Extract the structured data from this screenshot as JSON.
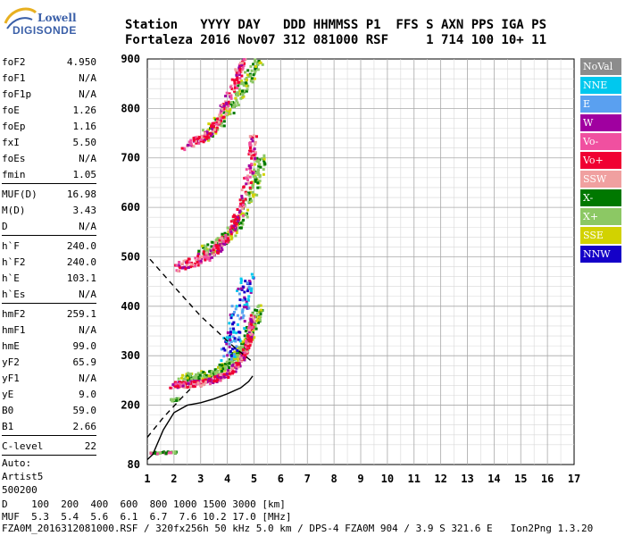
{
  "logo": {
    "line1": "Lowell",
    "line2": "DIGISONDE"
  },
  "header": {
    "line1": "Station   YYYY DAY   DDD HHMMSS P1  FFS S AXN PPS IGA PS",
    "line2": "Fortaleza 2016 Nov07 312 081000 RSF     1 714 100 10+ 11"
  },
  "params": {
    "group1": [
      {
        "name": "foF2",
        "value": "4.950"
      },
      {
        "name": "foF1",
        "value": "N/A"
      },
      {
        "name": "foF1p",
        "value": "N/A"
      },
      {
        "name": "foE",
        "value": "1.26"
      },
      {
        "name": "foEp",
        "value": "1.16"
      },
      {
        "name": "fxI",
        "value": "5.50"
      },
      {
        "name": "foEs",
        "value": "N/A"
      },
      {
        "name": "fmin",
        "value": "1.05"
      }
    ],
    "group2": [
      {
        "name": "MUF(D)",
        "value": "16.98"
      },
      {
        "name": "M(D)",
        "value": "3.43"
      },
      {
        "name": "D",
        "value": "N/A"
      }
    ],
    "group3": [
      {
        "name": "h`F",
        "value": "240.0"
      },
      {
        "name": "h`F2",
        "value": "240.0"
      },
      {
        "name": "h`E",
        "value": "103.1"
      },
      {
        "name": "h`Es",
        "value": "N/A"
      }
    ],
    "group4": [
      {
        "name": "hmF2",
        "value": "259.1"
      },
      {
        "name": "hmF1",
        "value": "N/A"
      },
      {
        "name": "hmE",
        "value": "99.0"
      },
      {
        "name": "yF2",
        "value": "65.9"
      },
      {
        "name": "yF1",
        "value": "N/A"
      },
      {
        "name": "yE",
        "value": "9.0"
      },
      {
        "name": "B0",
        "value": "59.0"
      },
      {
        "name": "B1",
        "value": "2.66"
      }
    ],
    "group5": [
      {
        "name": "C-level",
        "value": "22"
      }
    ],
    "auto": [
      "Auto:",
      "Artist5",
      "500200"
    ]
  },
  "legend": [
    {
      "label": "NoVal",
      "color": "#8c8c8c"
    },
    {
      "label": "NNE",
      "color": "#00c8ee"
    },
    {
      "label": "E",
      "color": "#5aa0f0"
    },
    {
      "label": "W",
      "color": "#a000a0"
    },
    {
      "label": "Vo-",
      "color": "#f050a0"
    },
    {
      "label": "Vo+",
      "color": "#f00032"
    },
    {
      "label": "SSW",
      "color": "#f0a0a0"
    },
    {
      "label": "X-",
      "color": "#007800"
    },
    {
      "label": "X+",
      "color": "#8cc864"
    },
    {
      "label": "SSE",
      "color": "#d2d200"
    },
    {
      "label": "NNW",
      "color": "#1400c8"
    }
  ],
  "bottom": {
    "d_line": "D    100  200  400  600  800 1000 1500 3000 [km]",
    "muf_line": "MUF  5.3  5.4  5.6  6.1  6.7  7.6 10.2 17.0 [MHz]"
  },
  "footer": "FZA0M_2016312081000.RSF / 320fx256h 50 kHz 5.0 km / DPS-4 FZA0M 904 / 3.9 S 321.6 E   Ion2Png 1.3.20",
  "chart_data": {
    "type": "scatter",
    "xlim": [
      1,
      17
    ],
    "ylim": [
      80,
      900
    ],
    "x_ticks": [
      1,
      2,
      3,
      4,
      5,
      6,
      7,
      8,
      9,
      10,
      11,
      12,
      13,
      14,
      15,
      16,
      17
    ],
    "y_ticks": [
      80,
      200,
      300,
      400,
      500,
      600,
      700,
      800,
      900
    ],
    "grid": true,
    "profile_solid": [
      [
        1.0,
        90
      ],
      [
        1.2,
        100
      ],
      [
        1.6,
        150
      ],
      [
        2.0,
        185
      ],
      [
        2.5,
        200
      ],
      [
        3.0,
        205
      ],
      [
        3.5,
        213
      ],
      [
        4.0,
        223
      ],
      [
        4.5,
        235
      ],
      [
        4.8,
        248
      ],
      [
        4.95,
        259
      ]
    ],
    "trace_o": [
      [
        1.9,
        240
      ],
      [
        2.5,
        242
      ],
      [
        3.0,
        244
      ],
      [
        3.5,
        250
      ],
      [
        4.0,
        262
      ],
      [
        4.4,
        282
      ],
      [
        4.7,
        310
      ],
      [
        4.85,
        340
      ],
      [
        4.95,
        380
      ]
    ],
    "trace_x": [
      [
        2.3,
        255
      ],
      [
        3.0,
        258
      ],
      [
        3.5,
        265
      ],
      [
        4.0,
        280
      ],
      [
        4.5,
        305
      ],
      [
        4.9,
        350
      ],
      [
        5.3,
        400
      ]
    ],
    "mirror_2": [
      [
        2.1,
        480
      ],
      [
        2.8,
        490
      ],
      [
        3.5,
        510
      ],
      [
        4.0,
        540
      ],
      [
        4.5,
        590
      ],
      [
        4.9,
        680
      ],
      [
        5.0,
        750
      ]
    ],
    "mirror_3": [
      [
        2.3,
        720
      ],
      [
        3.0,
        735
      ],
      [
        3.5,
        760
      ],
      [
        4.0,
        810
      ],
      [
        4.4,
        870
      ],
      [
        4.6,
        900
      ]
    ],
    "mirror_2x": [
      [
        3.0,
        505
      ],
      [
        3.8,
        530
      ],
      [
        4.5,
        570
      ],
      [
        5.0,
        640
      ],
      [
        5.3,
        700
      ]
    ],
    "mirror_3x": [
      [
        3.2,
        745
      ],
      [
        4.0,
        790
      ],
      [
        4.7,
        850
      ],
      [
        5.2,
        900
      ]
    ],
    "e_traces": [
      [
        1.1,
        103
      ],
      [
        1.4,
        103
      ],
      [
        1.8,
        104
      ],
      [
        2.1,
        104
      ]
    ],
    "es_traces": [
      [
        1.9,
        210
      ],
      [
        2.2,
        212
      ]
    ],
    "muf_dashed": [
      [
        1.1,
        495
      ],
      [
        2.0,
        440
      ],
      [
        3.0,
        380
      ],
      [
        3.6,
        350
      ],
      [
        4.2,
        320
      ],
      [
        5.0,
        285
      ]
    ],
    "muf_dashed_low": [
      [
        1.0,
        135
      ],
      [
        1.6,
        175
      ],
      [
        2.2,
        210
      ],
      [
        2.6,
        232
      ]
    ]
  }
}
